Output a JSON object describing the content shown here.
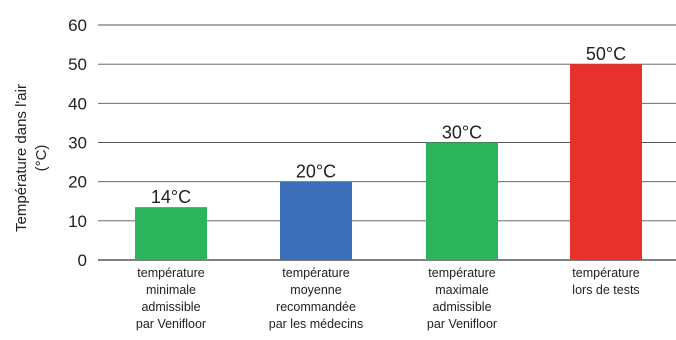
{
  "chart_data": {
    "type": "bar",
    "title": "",
    "xlabel": "",
    "ylabel": [
      "Température dans l'air",
      "(°C)"
    ],
    "ylim": [
      0,
      60
    ],
    "yticks": [
      "0",
      "10",
      "20",
      "30",
      "40",
      "50",
      "60"
    ],
    "grid": true,
    "categories": [
      [
        "température",
        "minimale",
        "admissible",
        "par Venifloor"
      ],
      [
        "température",
        "moyenne",
        "recommandée",
        "par les médecins"
      ],
      [
        "température",
        "maximale",
        "admissible",
        "par Venifloor"
      ],
      [
        "température",
        "lors de tests"
      ]
    ],
    "values": [
      13.5,
      20,
      30,
      50
    ],
    "data_labels": [
      "14°C",
      "20°C",
      "30°C",
      "50°C"
    ],
    "colors": [
      "#2cb45c",
      "#3c6fba",
      "#2cb45c",
      "#e8302d"
    ]
  }
}
